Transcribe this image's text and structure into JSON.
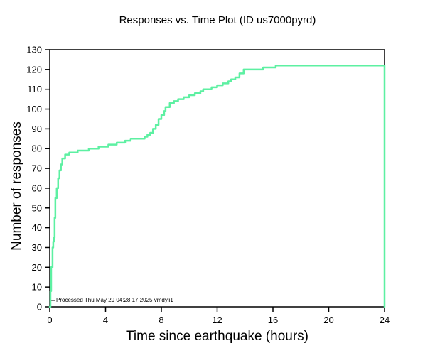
{
  "chart_data": {
    "type": "line",
    "subtype": "step",
    "title": "Responses vs. Time Plot (ID us7000pyrd)",
    "xlabel": "Time since earthquake (hours)",
    "ylabel": "Number of responses",
    "xlim": [
      0,
      24
    ],
    "ylim": [
      0,
      130
    ],
    "xticks": [
      0,
      4,
      8,
      12,
      16,
      20,
      24
    ],
    "yticks": [
      0,
      10,
      20,
      30,
      40,
      50,
      60,
      70,
      80,
      90,
      100,
      110,
      120,
      130
    ],
    "line_color": "#5df0a2",
    "frame_color": "#000000",
    "grid": false,
    "legend": "none",
    "annotation": "Processed Thu May 29 04:28:17 2025 vmdyli1",
    "points": [
      [
        0,
        0
      ],
      [
        0.05,
        8
      ],
      [
        0.1,
        20
      ],
      [
        0.2,
        30
      ],
      [
        0.25,
        33
      ],
      [
        0.3,
        35
      ],
      [
        0.35,
        45
      ],
      [
        0.4,
        55
      ],
      [
        0.5,
        60
      ],
      [
        0.6,
        65
      ],
      [
        0.7,
        69
      ],
      [
        0.8,
        72
      ],
      [
        0.9,
        75
      ],
      [
        1.1,
        77
      ],
      [
        1.4,
        78
      ],
      [
        2.0,
        79
      ],
      [
        2.8,
        80
      ],
      [
        3.5,
        81
      ],
      [
        4.2,
        82
      ],
      [
        4.8,
        83
      ],
      [
        5.4,
        84
      ],
      [
        5.8,
        85
      ],
      [
        6.8,
        86
      ],
      [
        7.0,
        87
      ],
      [
        7.2,
        88
      ],
      [
        7.4,
        90
      ],
      [
        7.6,
        92
      ],
      [
        7.8,
        95
      ],
      [
        8.0,
        97
      ],
      [
        8.2,
        99
      ],
      [
        8.3,
        101
      ],
      [
        8.6,
        103
      ],
      [
        8.9,
        104
      ],
      [
        9.2,
        105
      ],
      [
        9.6,
        106
      ],
      [
        10.0,
        107
      ],
      [
        10.4,
        108
      ],
      [
        10.8,
        109
      ],
      [
        11.0,
        110
      ],
      [
        11.6,
        111
      ],
      [
        12.0,
        112
      ],
      [
        12.4,
        113
      ],
      [
        12.8,
        114
      ],
      [
        13.0,
        115
      ],
      [
        13.3,
        116
      ],
      [
        13.6,
        118
      ],
      [
        13.9,
        120
      ],
      [
        15.3,
        121
      ],
      [
        16.2,
        122
      ],
      [
        24,
        122
      ],
      [
        24,
        0
      ]
    ]
  }
}
